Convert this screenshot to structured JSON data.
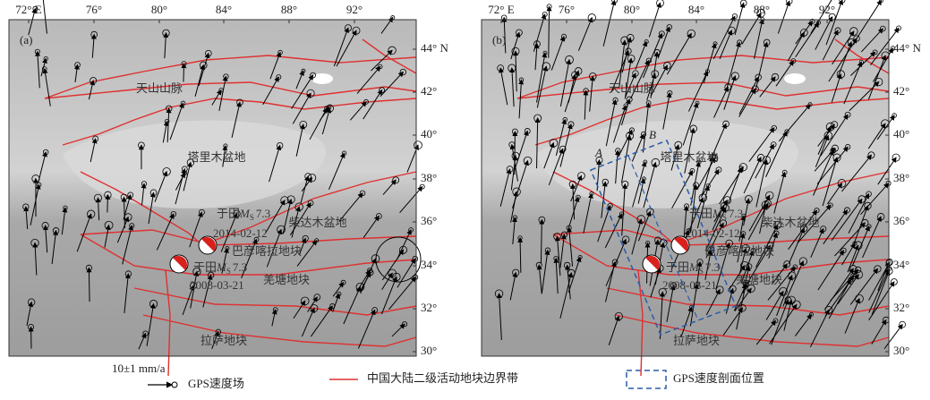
{
  "panels": [
    {
      "label": "(a)",
      "top_ticks": [
        "72° E",
        "76°",
        "80°",
        "84°",
        "88°",
        "92°"
      ],
      "right_ticks": [
        "44° N",
        "42°",
        "40°",
        "38°",
        "36°",
        "34°",
        "32°",
        "30°"
      ],
      "regions": [
        "天山山脉",
        "塔里木盆地",
        "柴达木盆地",
        "巴彦喀拉地块",
        "羌塘地块",
        "拉萨地块"
      ],
      "events": [
        {
          "name": "于田",
          "magnitude_symbol": "M",
          "magnitude_subscript": "S",
          "magnitude": "7.3",
          "date": "2014-02-12"
        },
        {
          "name": "于田",
          "magnitude_symbol": "M",
          "magnitude_subscript": "S",
          "magnitude": "7.3",
          "date": "2008-03-21"
        }
      ]
    },
    {
      "label": "(b)",
      "top_ticks": [
        "72° E",
        "76°",
        "80°",
        "84°",
        "88°",
        "92°"
      ],
      "right_ticks": [
        "44° N",
        "42°",
        "40°",
        "38°",
        "36°",
        "34°",
        "32°",
        "30°"
      ],
      "regions": [
        "天山山脉",
        "塔里木盆地",
        "柴达木盆地",
        "巴彦喀拉地块",
        "羌塘地块",
        "拉萨地块"
      ],
      "events": [
        {
          "name": "于田",
          "magnitude_symbol": "M",
          "magnitude_subscript": "S",
          "magnitude": "7.3",
          "date": "2014-02-12"
        },
        {
          "name": "于田",
          "magnitude_symbol": "M",
          "magnitude_subscript": "S",
          "magnitude": "7.3",
          "date": "2008-03-21"
        }
      ],
      "profiles": [
        "A",
        "B"
      ]
    }
  ],
  "legend": {
    "scale": "10±1 mm/a",
    "gps": "GPS速度场",
    "boundary": "中国大陆二级活动地块边界带",
    "profile": "GPS速度剖面位置"
  }
}
